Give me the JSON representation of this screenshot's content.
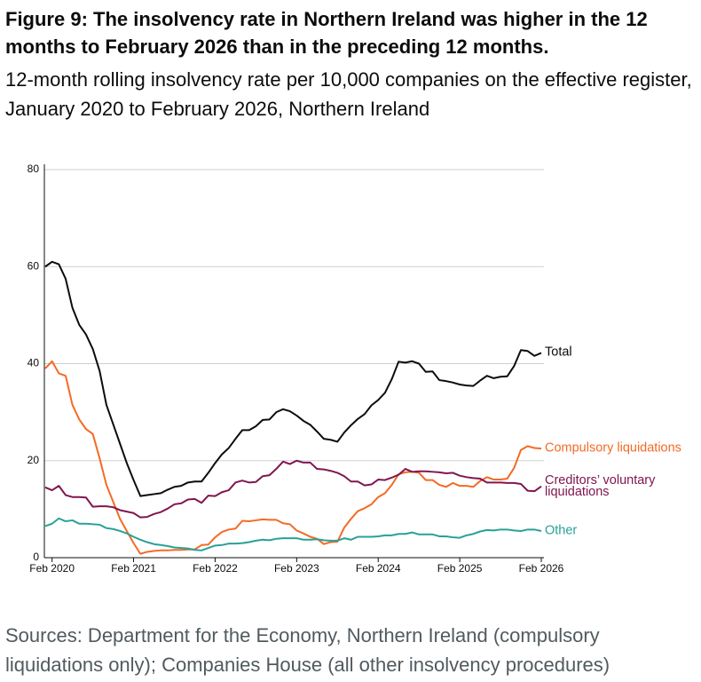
{
  "title": "Figure 9: The insolvency rate in Northern Ireland was higher in the 12 months to February 2026 than in the preceding 12 months.",
  "subtitle": "12-month rolling insolvency rate per 10,000 companies on the effective register, January 2020 to February 2026, Northern Ireland",
  "source": "Sources: Department for the Economy, Northern Ireland (compulsory liquidations only); Companies House (all other insolvency procedures)",
  "chart_data": {
    "type": "line",
    "categories": [
      null,
      "Feb 2020",
      null,
      null,
      null,
      null,
      null,
      null,
      null,
      null,
      null,
      null,
      null,
      "Feb 2021",
      null,
      null,
      null,
      null,
      null,
      null,
      null,
      null,
      null,
      null,
      null,
      "Feb 2022",
      null,
      null,
      null,
      null,
      null,
      null,
      null,
      null,
      null,
      null,
      null,
      "Feb 2023",
      null,
      null,
      null,
      null,
      null,
      null,
      null,
      null,
      null,
      null,
      null,
      "Feb 2024",
      null,
      null,
      null,
      null,
      null,
      null,
      null,
      null,
      null,
      null,
      null,
      "Feb 2025",
      null,
      null,
      null,
      null,
      null,
      null,
      null,
      null,
      null,
      null,
      null,
      "Feb 2026"
    ],
    "series": [
      {
        "name": "Total",
        "color": "#0b0c0c",
        "values": [
          60,
          61,
          60.5,
          57.5,
          51.5,
          48,
          46,
          43,
          38.5,
          31.5,
          27.5,
          23.5,
          19.5,
          16,
          12.7,
          12.9,
          13.1,
          13.3,
          14,
          14.6,
          14.8,
          15.5,
          15.7,
          15.7,
          17.5,
          19.5,
          21.3,
          22.6,
          24.5,
          26.3,
          26.3,
          27.1,
          28.4,
          28.5,
          30,
          30.6,
          30.2,
          29.3,
          28.2,
          27.4,
          26,
          24.5,
          24.3,
          23.9,
          25.8,
          27.3,
          28.6,
          29.6,
          31.4,
          32.5,
          34,
          36.8,
          40.4,
          40.2,
          40.5,
          40,
          38.3,
          38.4,
          36.6,
          36.4,
          36.1,
          35.7,
          35.5,
          35.4,
          36.5,
          37.5,
          37,
          37.3,
          37.4,
          39.5,
          42.8,
          42.6,
          41.6,
          42.2
        ]
      },
      {
        "name": "Compulsory liquidations",
        "color": "#f46a25",
        "values": [
          39,
          40.5,
          38,
          37.5,
          31.5,
          28.5,
          26.5,
          25.5,
          20.5,
          15,
          11.5,
          8,
          5.5,
          3,
          0.8,
          1.2,
          1.4,
          1.5,
          1.5,
          1.6,
          1.6,
          1.7,
          1.7,
          2.6,
          2.7,
          4.2,
          5.3,
          5.8,
          6,
          7.6,
          7.5,
          7.7,
          7.9,
          7.8,
          7.8,
          7.1,
          6.9,
          5.6,
          5,
          4.3,
          3.9,
          2.8,
          3.2,
          3.3,
          6.2,
          8,
          9.6,
          10.2,
          11,
          12.5,
          13.3,
          15,
          17.2,
          17.6,
          17.7,
          17.5,
          16,
          16,
          15,
          14.6,
          15.4,
          14.8,
          14.8,
          14.6,
          15.8,
          16.6,
          16.1,
          16.1,
          16.3,
          18.5,
          22.2,
          23,
          22.6,
          22.5
        ]
      },
      {
        "name": "Creditors’ voluntary liquidations",
        "color": "#801650",
        "values": [
          14.5,
          13.9,
          14.8,
          12.9,
          12.5,
          12.5,
          12.4,
          10.5,
          10.6,
          10.6,
          10.4,
          9.8,
          9.5,
          9.2,
          8.3,
          8.4,
          9,
          9.4,
          10.1,
          11,
          11.2,
          12,
          12.1,
          11.3,
          12.8,
          12.7,
          13.5,
          13.9,
          15.5,
          15.9,
          15.5,
          15.6,
          16.8,
          17,
          18.3,
          19.8,
          19.3,
          20,
          19.6,
          19.6,
          18.3,
          18.2,
          17.9,
          17.5,
          16.8,
          15.7,
          15.7,
          14.9,
          15.1,
          16.1,
          16,
          16.5,
          17.1,
          18.3,
          17.7,
          17.8,
          17.8,
          17.7,
          17.6,
          17.4,
          17.5,
          16.9,
          16.6,
          16.4,
          16.3,
          15.5,
          15.5,
          15.5,
          15.4,
          15.4,
          15.2,
          13.8,
          13.7,
          14.7
        ]
      },
      {
        "name": "Other",
        "color": "#28a197",
        "values": [
          6.5,
          7,
          8.1,
          7.5,
          7.7,
          7,
          7,
          6.9,
          6.8,
          6.1,
          5.9,
          5.5,
          5,
          4.3,
          3.7,
          3.2,
          2.8,
          2.6,
          2.4,
          2.1,
          2,
          1.9,
          1.6,
          1.5,
          2,
          2.5,
          2.6,
          2.9,
          2.9,
          3,
          3.2,
          3.5,
          3.7,
          3.6,
          3.9,
          4,
          4,
          4,
          3.7,
          3.7,
          3.8,
          3.6,
          3.5,
          3.5,
          4,
          3.7,
          4.3,
          4.3,
          4.3,
          4.4,
          4.6,
          4.6,
          4.9,
          4.9,
          5.2,
          4.8,
          4.8,
          4.8,
          4.4,
          4.4,
          4.2,
          4.1,
          4.6,
          4.9,
          5.4,
          5.7,
          5.6,
          5.8,
          5.8,
          5.6,
          5.5,
          5.8,
          5.8,
          5.5
        ]
      }
    ],
    "ylim": [
      0,
      80
    ],
    "yticks": [
      0,
      20,
      40,
      60,
      80
    ],
    "grid": true
  }
}
